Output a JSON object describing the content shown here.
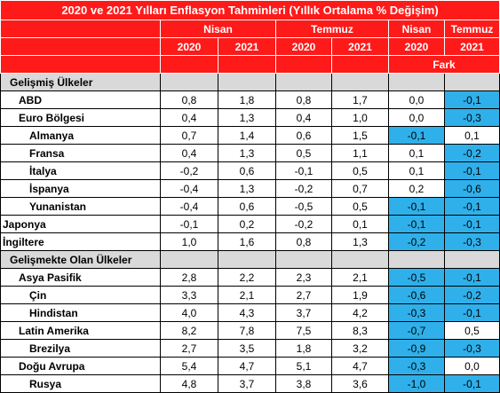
{
  "title": "2020 ve 2021 Yılları Enflasyon Tahminleri (Yıllık Ortalama % Değişim)",
  "header": {
    "groups": [
      "Nisan",
      "Temmuz",
      "Nisan",
      "Temmuz"
    ],
    "years": [
      "2020",
      "2021",
      "2020",
      "2021",
      "2020",
      "2021"
    ],
    "diff": "Fark"
  },
  "table": {
    "rows": [
      [
        "Gelişmiş Ülkeler"
      ],
      [
        "ABD",
        "0,8",
        "1,8",
        "0,8",
        "1,7",
        "0,0",
        "-0,1"
      ],
      [
        "Euro Bölgesi",
        "0,4",
        "1,3",
        "0,4",
        "1,0",
        "0,0",
        "-0,3"
      ],
      [
        "Almanya",
        "0,7",
        "1,4",
        "0,6",
        "1,5",
        "-0,1",
        "0,1"
      ],
      [
        "Fransa",
        "0,4",
        "1,3",
        "0,5",
        "1,1",
        "0,1",
        "-0,2"
      ],
      [
        "İtalya",
        "-0,2",
        "0,6",
        "-0,1",
        "0,5",
        "0,1",
        "-0,1"
      ],
      [
        "İspanya",
        "-0,4",
        "1,3",
        "-0,2",
        "0,7",
        "0,2",
        "-0,6"
      ],
      [
        "Yunanistan",
        "-0,4",
        "0,6",
        "-0,5",
        "0,5",
        "-0,1",
        "-0,1"
      ],
      [
        "Japonya",
        "-0,1",
        "0,2",
        "-0,2",
        "0,1",
        "-0,1",
        "-0,1"
      ],
      [
        "İngiltere",
        "1,0",
        "1,6",
        "0,8",
        "1,3",
        "-0,2",
        "-0,3"
      ],
      [
        "Gelişmekte Olan Ülkeler"
      ],
      [
        "Asya Pasifik",
        "2,8",
        "2,2",
        "2,3",
        "2,1",
        "-0,5",
        "-0,1"
      ],
      [
        "Çin",
        "3,3",
        "2,1",
        "2,7",
        "1,9",
        "-0,6",
        "-0,2"
      ],
      [
        "Hindistan",
        "4,0",
        "4,3",
        "3,7",
        "4,2",
        "-0,3",
        "-0,1"
      ],
      [
        "Latin Amerika",
        "8,2",
        "7,8",
        "7,5",
        "8,3",
        "-0,7",
        "0,5"
      ],
      [
        "Brezilya",
        "2,7",
        "3,5",
        "1,8",
        "3,2",
        "-0,9",
        "-0,3"
      ],
      [
        "Doğu Avrupa",
        "5,4",
        "4,7",
        "5,1",
        "4,7",
        "-0,3",
        "0,0"
      ],
      [
        "Rusya",
        "4,8",
        "3,7",
        "3,8",
        "3,6",
        "-1,0",
        "-0,1"
      ]
    ]
  }
}
